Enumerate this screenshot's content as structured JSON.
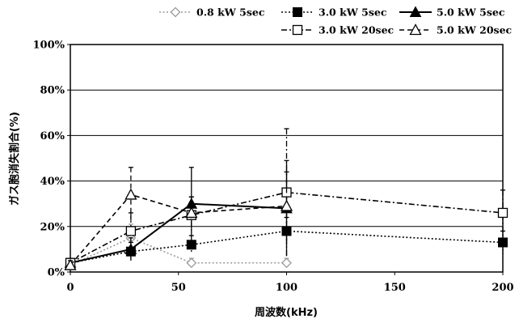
{
  "chart_data": {
    "type": "line",
    "xlabel": "周波数(kHz)",
    "ylabel": "ガス胞消失割合(%)",
    "xlim": [
      0,
      200
    ],
    "ylim": [
      0,
      100
    ],
    "x_ticks": [
      0,
      50,
      100,
      150,
      200
    ],
    "y_ticks": [
      0,
      20,
      40,
      60,
      80,
      100
    ],
    "x_tick_labels": [
      "0",
      "50",
      "100",
      "150",
      "200"
    ],
    "y_tick_labels": [
      "0%",
      "20%",
      "40%",
      "60%",
      "80%",
      "100%"
    ],
    "grid": "horizontal",
    "legend_position": "top",
    "series": [
      {
        "name": "0.8 kW 5sec",
        "marker": "diamond-open",
        "line": "dotted",
        "color": "#9a9a9a",
        "x": [
          0,
          28,
          56,
          100
        ],
        "y": [
          3,
          15,
          4,
          4
        ],
        "err": [
          2,
          6,
          2,
          2
        ]
      },
      {
        "name": "3.0 kW 5sec",
        "marker": "square-filled",
        "line": "dotted",
        "color": "#000000",
        "x": [
          0,
          28,
          56,
          100,
          200
        ],
        "y": [
          4,
          9,
          12,
          18,
          13
        ],
        "err": [
          2,
          4,
          4,
          6,
          5
        ]
      },
      {
        "name": "5.0 kW 5sec",
        "marker": "triangle-filled",
        "line": "solid",
        "color": "#000000",
        "x": [
          0,
          28,
          56,
          100
        ],
        "y": [
          4,
          10,
          30,
          28
        ],
        "err": [
          2,
          5,
          16,
          21
        ]
      },
      {
        "name": "3.0 kW 20sec",
        "marker": "square-open",
        "line": "dashdot",
        "color": "#000000",
        "x": [
          0,
          28,
          56,
          100,
          200
        ],
        "y": [
          4,
          18,
          25,
          35,
          26
        ],
        "err": [
          2,
          8,
          8,
          28,
          10
        ]
      },
      {
        "name": "5.0 kW 20sec",
        "marker": "triangle-open",
        "line": "dashed",
        "color": "#000000",
        "x": [
          0,
          28,
          56,
          100
        ],
        "y": [
          3,
          34,
          26,
          29
        ],
        "err": [
          2,
          12,
          7,
          15
        ]
      }
    ]
  }
}
